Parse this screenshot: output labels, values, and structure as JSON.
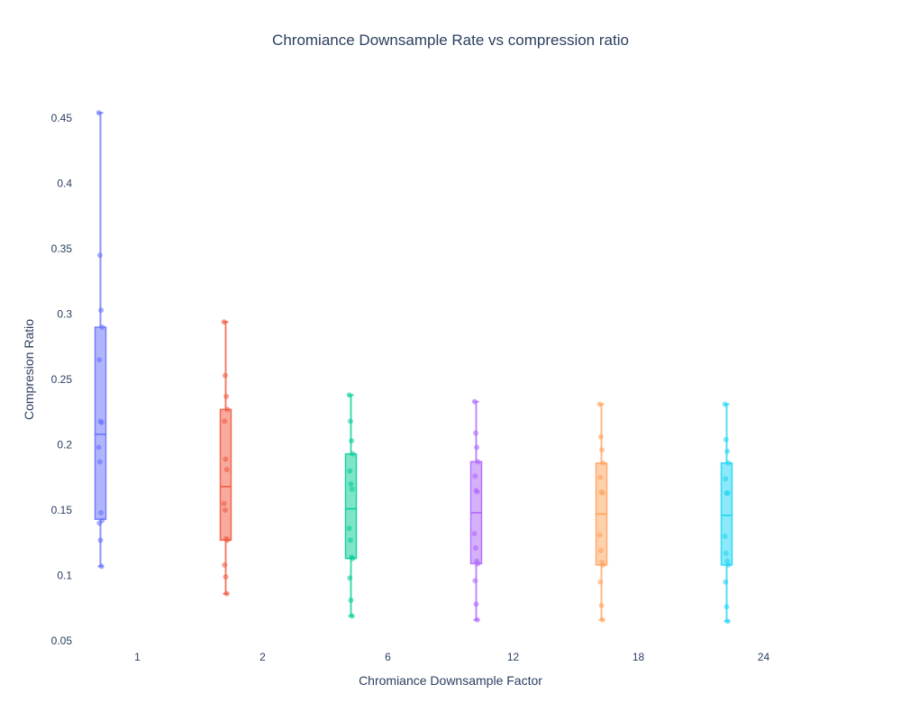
{
  "chart_data": {
    "type": "box",
    "title": "Chromiance Downsample Rate vs compression ratio",
    "xlabel": "Chromiance Downsample Factor",
    "ylabel": "Compresion Ratio",
    "categories": [
      "1",
      "2",
      "6",
      "12",
      "18",
      "24"
    ],
    "ylim": [
      0.05,
      0.455
    ],
    "yticks": [
      "0.05",
      "0.1",
      "0.15",
      "0.2",
      "0.25",
      "0.3",
      "0.35",
      "0.4",
      "0.45"
    ],
    "grid": false,
    "legend": "none",
    "series": [
      {
        "category": "1",
        "color": "#636efa",
        "min": 0.107,
        "q1": 0.143,
        "median": 0.208,
        "q3": 0.29,
        "max": 0.454,
        "points": [
          0.454,
          0.345,
          0.303,
          0.29,
          0.265,
          0.218,
          0.217,
          0.198,
          0.187,
          0.148,
          0.142,
          0.14,
          0.127,
          0.107
        ]
      },
      {
        "category": "2",
        "color": "#ef553b",
        "min": 0.086,
        "q1": 0.127,
        "median": 0.168,
        "q3": 0.227,
        "max": 0.294,
        "points": [
          0.294,
          0.253,
          0.237,
          0.227,
          0.218,
          0.189,
          0.181,
          0.155,
          0.15,
          0.128,
          0.127,
          0.108,
          0.099,
          0.086
        ]
      },
      {
        "category": "6",
        "color": "#00cc96",
        "min": 0.069,
        "q1": 0.113,
        "median": 0.151,
        "q3": 0.193,
        "max": 0.238,
        "points": [
          0.238,
          0.218,
          0.203,
          0.193,
          0.18,
          0.17,
          0.166,
          0.136,
          0.127,
          0.114,
          0.113,
          0.098,
          0.081,
          0.069
        ]
      },
      {
        "category": "12",
        "color": "#ab63fa",
        "min": 0.066,
        "q1": 0.109,
        "median": 0.148,
        "q3": 0.187,
        "max": 0.233,
        "points": [
          0.233,
          0.209,
          0.198,
          0.187,
          0.176,
          0.165,
          0.164,
          0.132,
          0.121,
          0.111,
          0.109,
          0.096,
          0.078,
          0.066
        ]
      },
      {
        "category": "18",
        "color": "#ffa15a",
        "min": 0.066,
        "q1": 0.108,
        "median": 0.147,
        "q3": 0.186,
        "max": 0.231,
        "points": [
          0.231,
          0.206,
          0.196,
          0.186,
          0.175,
          0.164,
          0.163,
          0.131,
          0.119,
          0.11,
          0.108,
          0.095,
          0.077,
          0.066
        ]
      },
      {
        "category": "24",
        "color": "#19d3f3",
        "min": 0.065,
        "q1": 0.108,
        "median": 0.146,
        "q3": 0.186,
        "max": 0.231,
        "points": [
          0.231,
          0.204,
          0.195,
          0.186,
          0.174,
          0.163,
          0.163,
          0.13,
          0.117,
          0.111,
          0.108,
          0.095,
          0.076,
          0.065
        ]
      }
    ]
  }
}
